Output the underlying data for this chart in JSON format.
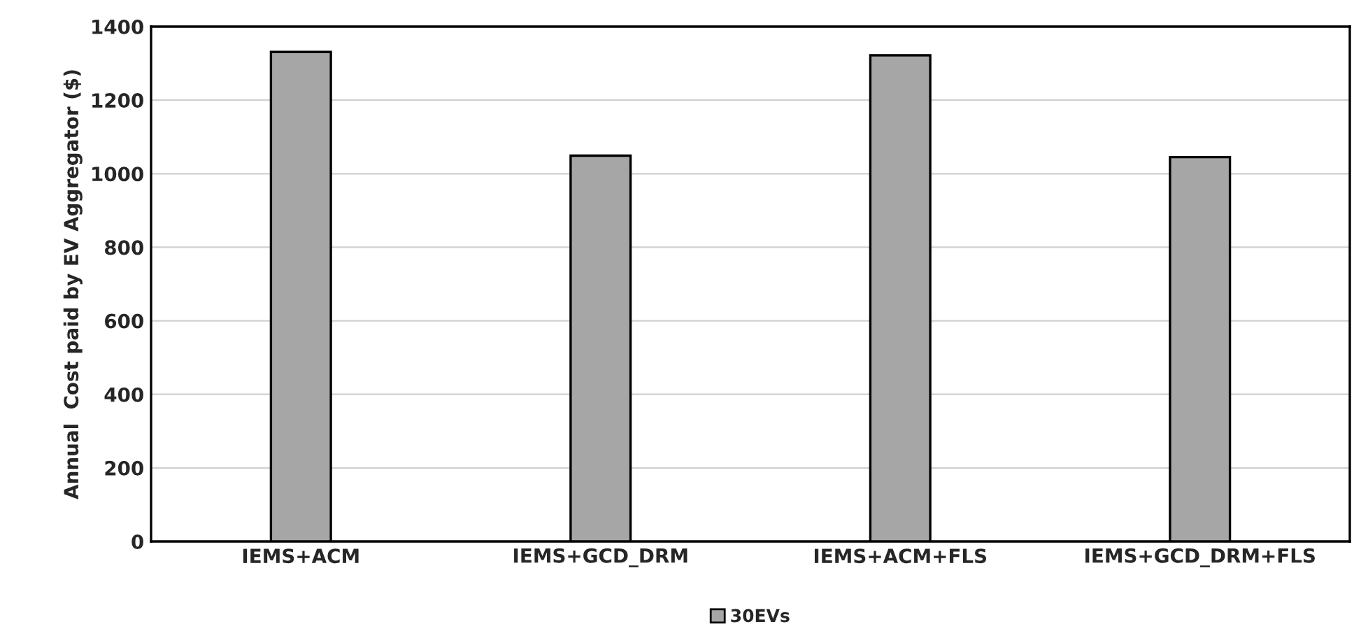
{
  "chart_data": {
    "type": "bar",
    "ylabel": "Annual  Cost paid by EV Aggregator ($)",
    "categories": [
      "IEMS+ACM",
      "IEMS+GCD_DRM",
      "IEMS+ACM+FLS",
      "IEMS+GCD_DRM+FLS"
    ],
    "series": [
      {
        "name": "30EVs",
        "color": "#a6a6a6",
        "values": [
          1331,
          1049,
          1322,
          1045
        ]
      }
    ],
    "ylim": [
      0,
      1400
    ],
    "yticks": [
      0,
      200,
      400,
      600,
      800,
      1000,
      1200,
      1400
    ],
    "grid": "y",
    "legend": "bottom"
  }
}
